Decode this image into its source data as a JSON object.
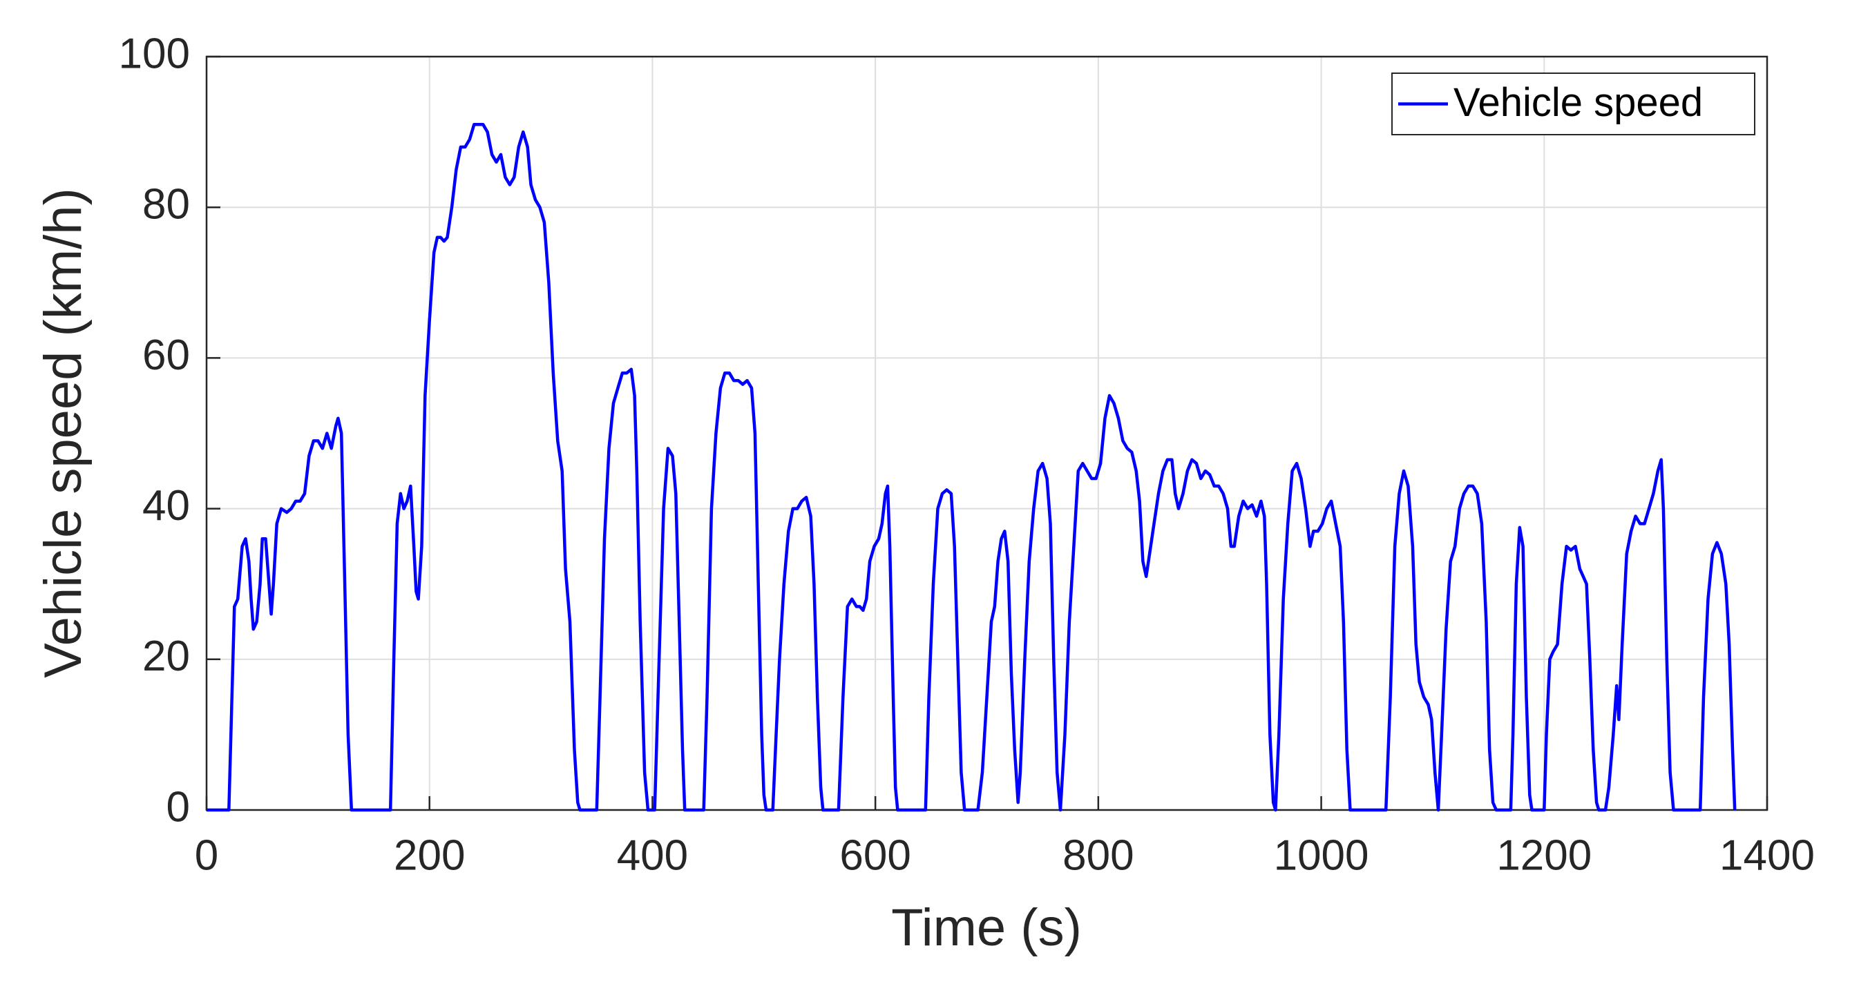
{
  "chart_data": {
    "type": "line",
    "xlabel": "Time (s)",
    "ylabel": "Vehicle speed (km/h)",
    "xlim": [
      0,
      1400
    ],
    "ylim": [
      0,
      100
    ],
    "xticks": [
      0,
      200,
      400,
      600,
      800,
      1000,
      1200,
      1400
    ],
    "yticks": [
      0,
      20,
      40,
      60,
      80,
      100
    ],
    "grid": true,
    "legend": "northeast",
    "x": [
      0,
      20,
      25,
      28,
      32,
      35,
      38,
      40,
      42,
      45,
      48,
      50,
      53,
      56,
      58,
      60,
      63,
      67,
      72,
      76,
      80,
      84,
      88,
      92,
      96,
      100,
      104,
      108,
      112,
      116,
      118,
      121,
      124,
      127,
      130,
      165,
      168,
      171,
      174,
      177,
      180,
      183,
      186,
      188,
      190,
      193,
      196,
      200,
      204,
      207,
      210,
      213,
      216,
      220,
      224,
      228,
      232,
      236,
      240,
      244,
      248,
      252,
      256,
      260,
      264,
      268,
      272,
      276,
      280,
      284,
      288,
      291,
      295,
      299,
      303,
      307,
      311,
      315,
      319,
      322,
      326,
      330,
      333,
      335,
      350,
      353,
      357,
      361,
      365,
      369,
      373,
      377,
      381,
      384,
      386,
      389,
      393,
      396,
      402,
      406,
      410,
      414,
      418,
      421,
      424,
      427,
      429,
      446,
      449,
      453,
      457,
      461,
      465,
      469,
      473,
      477,
      481,
      485,
      489,
      492,
      495,
      498,
      500,
      502,
      508,
      511,
      514,
      518,
      522,
      526,
      530,
      534,
      538,
      542,
      545,
      548,
      551,
      553,
      567,
      571,
      575,
      579,
      583,
      586,
      589,
      592,
      595,
      599,
      603,
      606,
      609,
      611,
      613,
      616,
      618,
      620,
      645,
      648,
      652,
      656,
      660,
      664,
      668,
      671,
      674,
      677,
      680,
      692,
      696,
      700,
      704,
      707,
      710,
      713,
      716,
      719,
      722,
      725,
      728,
      730,
      734,
      738,
      742,
      746,
      750,
      754,
      757,
      760,
      763,
      766,
      770,
      774,
      778,
      782,
      786,
      790,
      794,
      798,
      802,
      806,
      810,
      814,
      818,
      822,
      826,
      830,
      834,
      837,
      840,
      843,
      846,
      850,
      854,
      858,
      862,
      866,
      869,
      872,
      876,
      880,
      884,
      888,
      892,
      896,
      900,
      904,
      908,
      912,
      916,
      919,
      922,
      926,
      930,
      934,
      938,
      942,
      946,
      949,
      951,
      954,
      957,
      959,
      962,
      966,
      970,
      974,
      978,
      982,
      986,
      990,
      993,
      997,
      1001,
      1005,
      1009,
      1013,
      1017,
      1020,
      1023,
      1026,
      1058,
      1062,
      1066,
      1070,
      1074,
      1078,
      1082,
      1085,
      1088,
      1092,
      1096,
      1099,
      1102,
      1105,
      1108,
      1112,
      1116,
      1120,
      1124,
      1128,
      1132,
      1136,
      1140,
      1144,
      1148,
      1151,
      1154,
      1157,
      1170,
      1172,
      1175,
      1178,
      1181,
      1184,
      1187,
      1189,
      1200,
      1202,
      1205,
      1208,
      1212,
      1216,
      1220,
      1224,
      1228,
      1232,
      1235,
      1238,
      1241,
      1244,
      1247,
      1249,
      1255,
      1258,
      1262,
      1265,
      1267,
      1270,
      1274,
      1278,
      1282,
      1286,
      1290,
      1294,
      1298,
      1302,
      1305,
      1307,
      1310,
      1313,
      1316,
      1340,
      1343,
      1347,
      1351,
      1355,
      1359,
      1363,
      1366,
      1369,
      1371
    ],
    "series": [
      {
        "name": "Vehicle speed",
        "color": "#0000ff",
        "values": [
          0,
          0,
          27,
          28,
          35,
          36,
          33,
          28,
          24,
          25,
          30,
          36,
          36,
          30,
          26,
          30,
          38,
          40,
          39.5,
          40,
          41,
          41,
          42,
          47,
          49,
          49,
          48,
          50,
          48,
          51,
          52,
          50,
          30,
          10,
          0,
          0,
          20,
          38,
          42,
          40,
          41,
          43,
          35,
          29,
          28,
          35,
          55,
          65,
          74,
          76,
          76,
          75.5,
          76,
          80,
          85,
          88,
          88,
          89,
          91,
          91,
          91,
          90,
          87,
          86,
          87,
          84,
          83,
          84,
          88,
          90,
          88,
          83,
          81,
          80,
          78,
          70,
          58,
          49,
          45,
          32,
          25,
          8,
          1,
          0,
          0,
          15,
          36,
          48,
          54,
          56,
          58,
          58,
          58.5,
          55,
          45,
          25,
          5,
          0,
          0,
          20,
          40,
          48,
          47,
          42,
          25,
          8,
          0,
          0,
          15,
          40,
          50,
          56,
          58,
          58,
          57,
          57,
          56.5,
          57,
          56,
          50,
          30,
          10,
          2,
          0,
          0,
          10,
          20,
          30,
          37,
          40,
          40,
          41,
          41.5,
          39,
          30,
          15,
          3,
          0,
          0,
          15,
          27,
          28,
          27,
          27,
          26.5,
          28,
          33,
          35,
          36,
          38,
          42,
          43,
          35,
          15,
          3,
          0,
          0,
          15,
          30,
          40,
          42,
          42.5,
          42,
          35,
          20,
          5,
          0,
          0,
          5,
          15,
          25,
          27,
          33,
          36,
          37,
          33,
          18,
          8,
          1,
          5,
          20,
          33,
          40,
          45,
          46,
          44,
          38,
          20,
          5,
          0,
          10,
          25,
          35,
          45,
          46,
          45,
          44,
          44,
          46,
          52,
          55,
          54,
          52,
          49,
          48,
          47.5,
          45,
          41,
          33,
          31,
          34,
          38,
          42,
          45,
          46.5,
          46.5,
          42,
          40,
          42,
          45,
          46.5,
          46,
          44,
          45,
          44.5,
          43,
          43,
          42,
          40,
          35,
          35,
          39,
          41,
          40,
          40.5,
          39,
          41,
          39,
          30,
          10,
          1,
          0,
          10,
          28,
          38,
          45,
          46,
          44,
          40,
          35,
          37,
          37,
          38,
          40,
          41,
          38,
          35,
          25,
          8,
          0,
          0,
          15,
          35,
          42,
          45,
          43,
          35,
          22,
          17,
          15,
          14,
          12,
          5,
          0,
          10,
          24,
          33,
          35,
          40,
          42,
          43,
          43,
          42,
          38,
          25,
          8,
          1,
          0,
          0,
          10,
          30,
          37.5,
          35,
          15,
          2,
          0,
          0,
          10,
          20,
          21,
          22,
          30,
          35,
          34.5,
          35,
          32,
          31,
          30,
          20,
          8,
          1,
          0,
          0,
          3,
          10,
          16.5,
          12,
          22,
          34,
          37,
          39,
          38,
          38,
          40,
          42,
          45,
          46.5,
          40,
          20,
          5,
          0,
          0,
          15,
          28,
          34,
          35.5,
          34,
          30,
          22,
          8,
          0
        ]
      }
    ]
  }
}
